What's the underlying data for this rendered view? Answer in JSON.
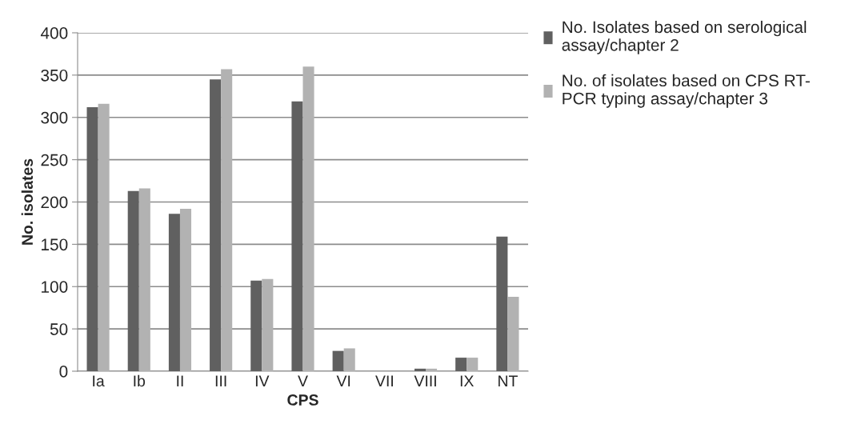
{
  "chart_data": {
    "type": "bar",
    "xlabel": "CPS",
    "ylabel": "No. isolates",
    "categories": [
      "Ia",
      "Ib",
      "II",
      "III",
      "IV",
      "V",
      "VI",
      "VII",
      "VIII",
      "IX",
      "NT"
    ],
    "series": [
      {
        "name": "No. Isolates based on serological\nassay/chapter 2",
        "color": "#606060",
        "values": [
          312,
          213,
          186,
          345,
          107,
          319,
          24,
          null,
          3,
          16,
          159
        ]
      },
      {
        "name": "No. of isolates based on CPS RT-\nPCR typing assay/chapter 3",
        "color": "#b2b2b2",
        "values": [
          316,
          216,
          192,
          357,
          109,
          360,
          27,
          null,
          3,
          16,
          88
        ]
      }
    ],
    "ylim": [
      0,
      400
    ],
    "yticks": [
      0,
      50,
      100,
      150,
      200,
      250,
      300,
      350,
      400
    ],
    "grid": "y",
    "legend": "top right"
  }
}
